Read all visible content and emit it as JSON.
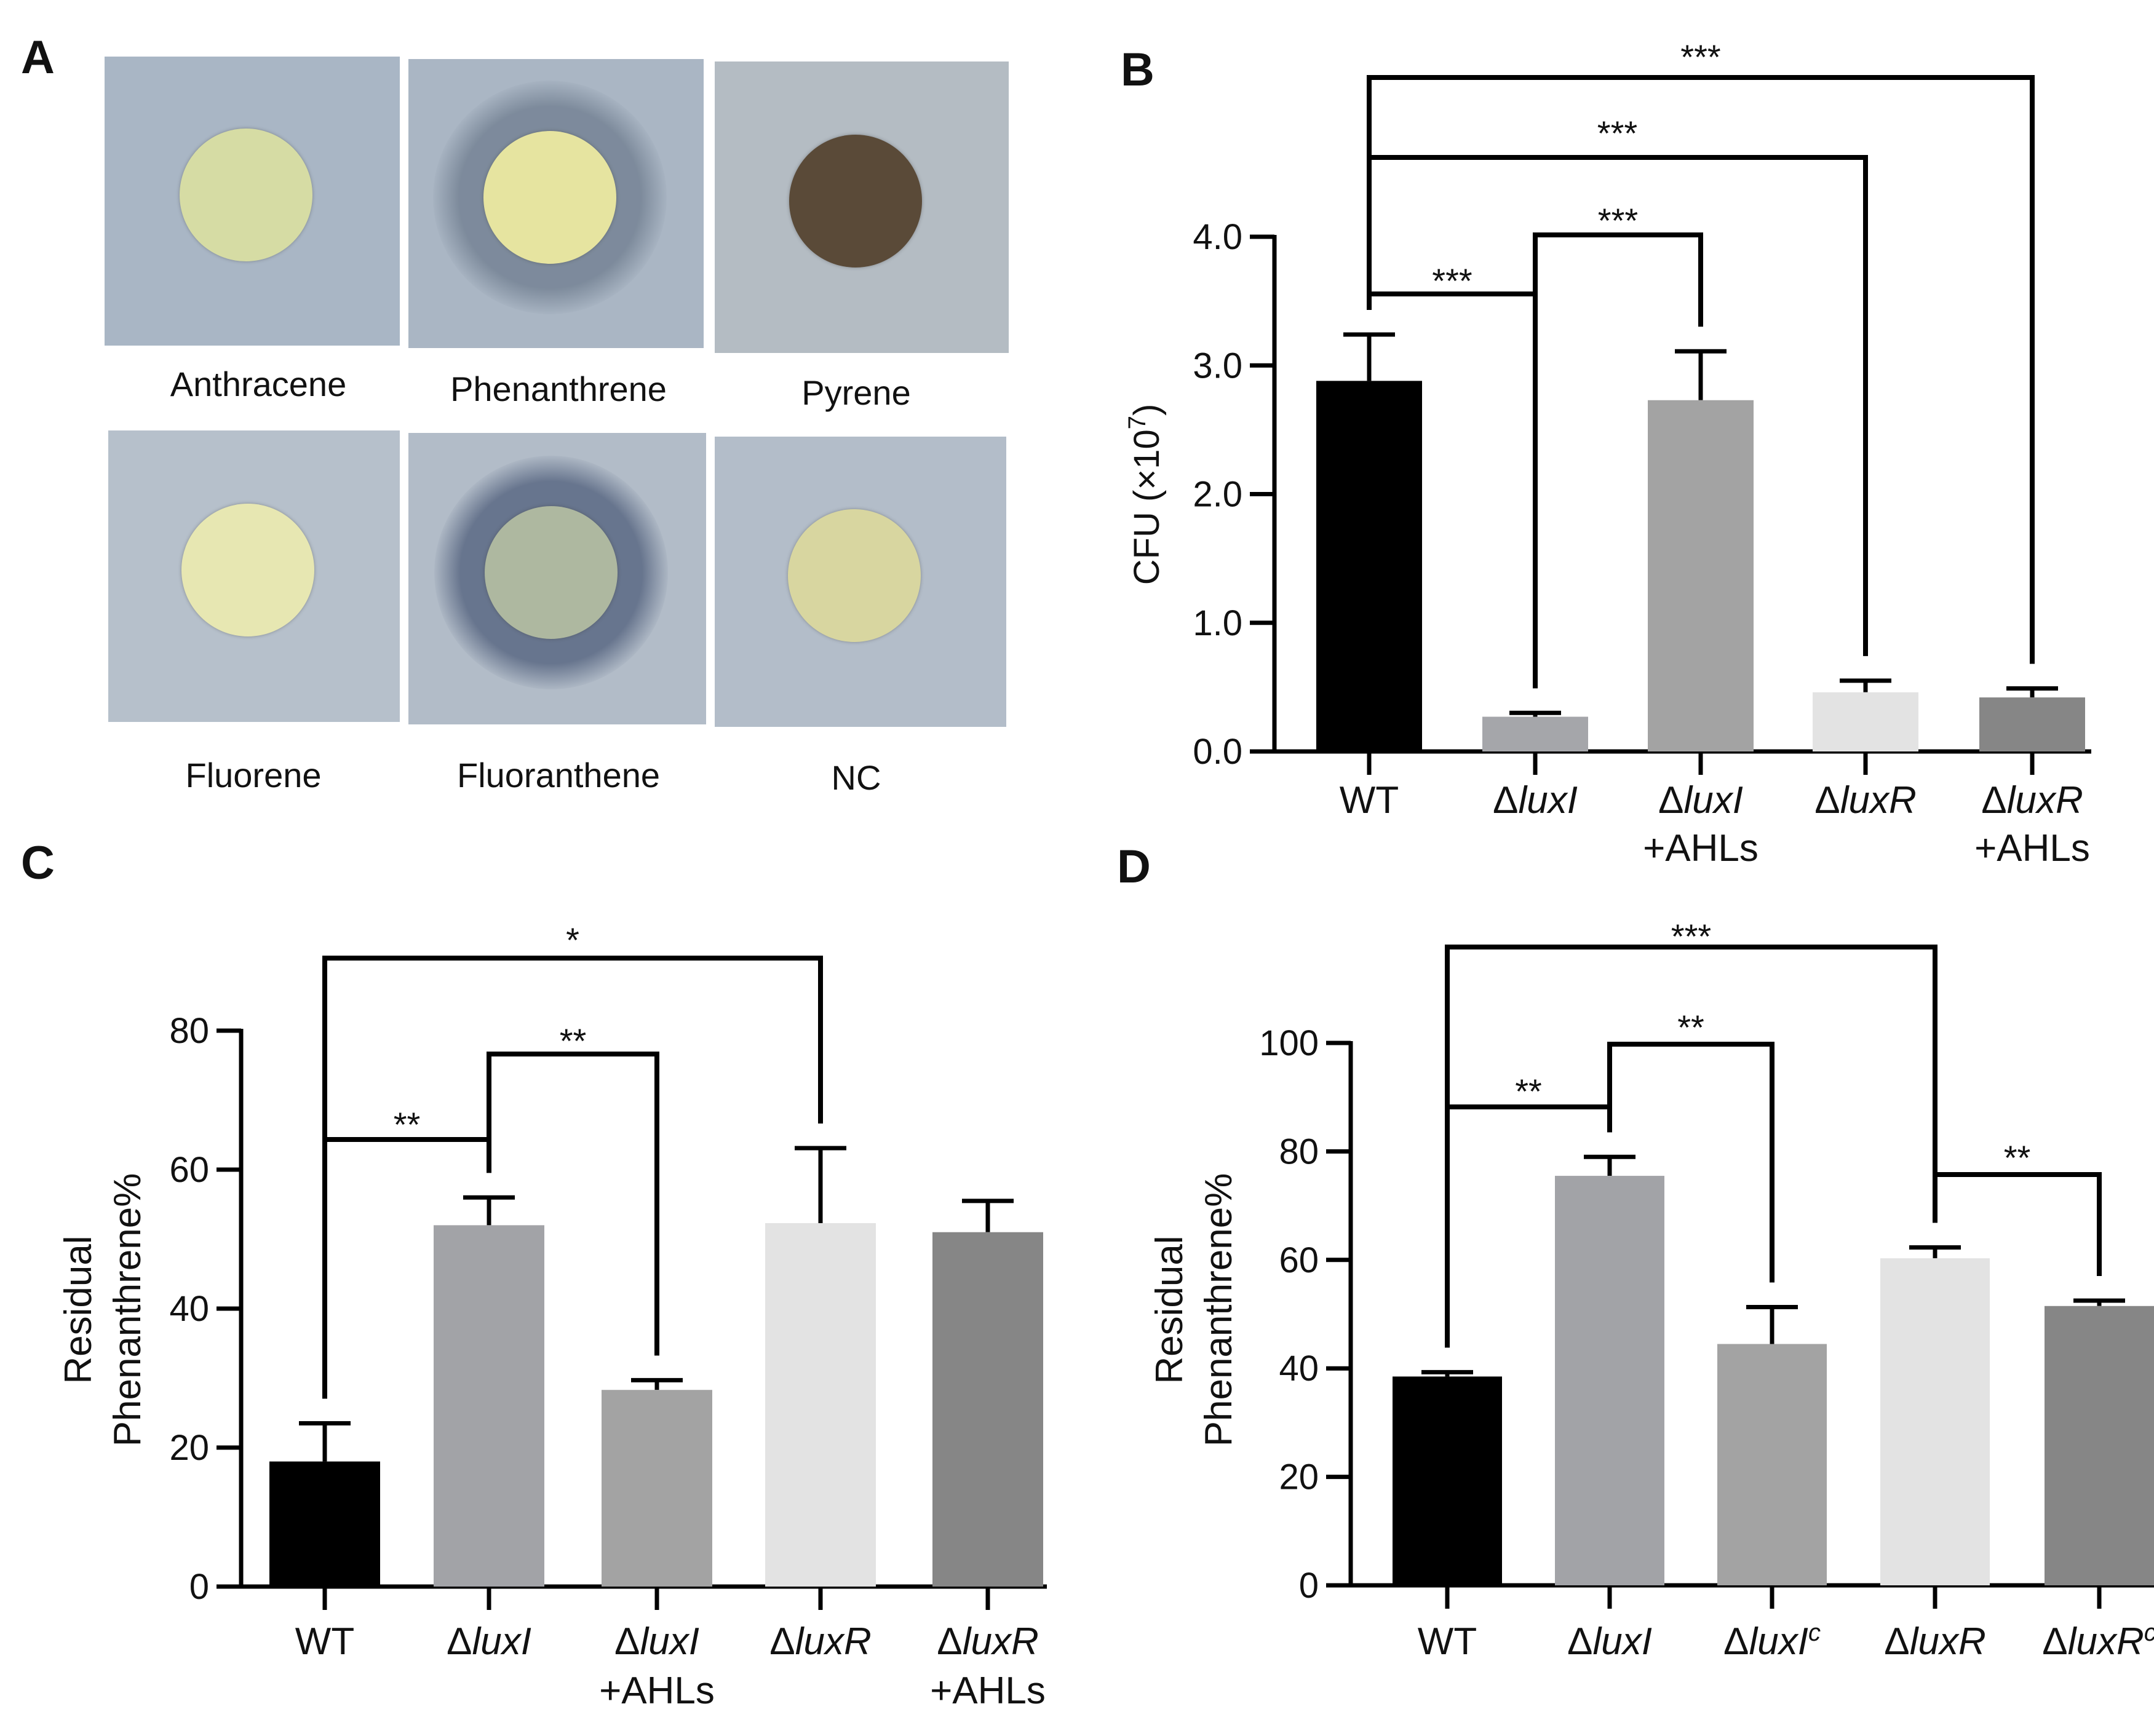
{
  "panels": {
    "a": "A",
    "b": "B",
    "c": "C",
    "d": "D"
  },
  "plates": [
    {
      "label": "Anthracene",
      "bg": "#a9b6c5",
      "colony": "#d6dca4",
      "halo": null
    },
    {
      "label": "Phenanthrene",
      "bg": "#aab6c4",
      "colony": "#e6e4a0",
      "halo": "#6e7c8e"
    },
    {
      "label": "Pyrene",
      "bg": "#b4bcc3",
      "colony": "#5a4a38",
      "halo": null
    },
    {
      "label": "Fluorene",
      "bg": "#b6c0cb",
      "colony": "#e7e7b2",
      "halo": null
    },
    {
      "label": "Fluoranthene",
      "bg": "#b2bcc8",
      "colony": "#aeb8a0",
      "halo": "#4e5d7a"
    },
    {
      "label": "NC",
      "bg": "#b3bdc9",
      "colony": "#d8d6a0",
      "halo": null
    }
  ],
  "chart_data": [
    {
      "panel": "B",
      "type": "bar",
      "ylabel_main": "CFU (×10",
      "ylabel_sup": "7",
      "ylabel_close": ")",
      "ylim": [
        0,
        4
      ],
      "yticks": [
        "0.0",
        "1.0",
        "2.0",
        "3.0",
        "4.0"
      ],
      "ytick_values": [
        0,
        1,
        2,
        3,
        4
      ],
      "categories": [
        {
          "prefix": "",
          "italic": "",
          "sup": "",
          "line2": "",
          "plain": "WT"
        },
        {
          "prefix": "Δ",
          "italic": "luxI",
          "sup": "",
          "line2": ""
        },
        {
          "prefix": "Δ",
          "italic": "luxI",
          "sup": "",
          "line2": "+AHLs"
        },
        {
          "prefix": "Δ",
          "italic": "luxR",
          "sup": "",
          "line2": ""
        },
        {
          "prefix": "Δ",
          "italic": "luxR",
          "sup": "",
          "line2": "+AHLs"
        }
      ],
      "values": [
        2.88,
        0.27,
        2.73,
        0.46,
        0.42
      ],
      "errors": [
        0.36,
        0.03,
        0.38,
        0.09,
        0.07
      ],
      "colors": [
        "#000000",
        "#a5a6aa",
        "#a3a3a3",
        "#e3e3e3",
        "#868686"
      ],
      "significance": [
        {
          "from": 0,
          "to": 1,
          "label": "***"
        },
        {
          "from": 1,
          "to": 2,
          "label": "***"
        },
        {
          "from": 0,
          "to": 3,
          "label": "***"
        },
        {
          "from": 0,
          "to": 4,
          "label": "***"
        }
      ]
    },
    {
      "panel": "C",
      "type": "bar",
      "ylabel_line1": "Residual",
      "ylabel_line2": "Phenanthrene%",
      "ylim": [
        0,
        80
      ],
      "yticks": [
        "0",
        "20",
        "40",
        "60",
        "80"
      ],
      "ytick_values": [
        0,
        20,
        40,
        60,
        80
      ],
      "categories": [
        {
          "prefix": "",
          "italic": "",
          "sup": "",
          "line2": "",
          "plain": "WT"
        },
        {
          "prefix": "Δ",
          "italic": "luxI",
          "sup": "",
          "line2": ""
        },
        {
          "prefix": "Δ",
          "italic": "luxI",
          "sup": "",
          "line2": "+AHLs"
        },
        {
          "prefix": "Δ",
          "italic": "luxR",
          "sup": "",
          "line2": ""
        },
        {
          "prefix": "Δ",
          "italic": "luxR",
          "sup": "",
          "line2": "+AHLs"
        }
      ],
      "values": [
        18,
        52,
        28.3,
        52.3,
        51
      ],
      "errors": [
        5.5,
        4,
        1.4,
        10.8,
        4.5
      ],
      "colors": [
        "#000000",
        "#a2a3a7",
        "#a3a3a3",
        "#e3e3e3",
        "#868686"
      ],
      "significance": [
        {
          "from": 0,
          "to": 1,
          "label": "**"
        },
        {
          "from": 1,
          "to": 2,
          "label": "**"
        },
        {
          "from": 0,
          "to": 3,
          "label": "*"
        }
      ]
    },
    {
      "panel": "D",
      "type": "bar",
      "ylabel_line1": "Residual",
      "ylabel_line2": "Phenanthrene%",
      "ylim": [
        0,
        100
      ],
      "yticks": [
        "0",
        "20",
        "40",
        "60",
        "80",
        "100"
      ],
      "ytick_values": [
        0,
        20,
        40,
        60,
        80,
        100
      ],
      "categories": [
        {
          "prefix": "",
          "italic": "",
          "sup": "",
          "line2": "",
          "plain": "WT"
        },
        {
          "prefix": "Δ",
          "italic": "luxI",
          "sup": "",
          "line2": ""
        },
        {
          "prefix": "Δ",
          "italic": "luxI",
          "sup": "c",
          "line2": ""
        },
        {
          "prefix": "Δ",
          "italic": "luxR",
          "sup": "",
          "line2": ""
        },
        {
          "prefix": "Δ",
          "italic": "luxR",
          "sup": "c",
          "line2": ""
        }
      ],
      "values": [
        38.5,
        75.5,
        44.5,
        60.3,
        51.5
      ],
      "errors": [
        0.8,
        3.5,
        6.8,
        2.0,
        1.0
      ],
      "colors": [
        "#000000",
        "#a2a3a7",
        "#a3a3a3",
        "#e3e3e3",
        "#868686"
      ],
      "significance": [
        {
          "from": 0,
          "to": 1,
          "label": "**"
        },
        {
          "from": 1,
          "to": 2,
          "label": "**"
        },
        {
          "from": 0,
          "to": 3,
          "label": "***"
        },
        {
          "from": 3,
          "to": 4,
          "label": "**"
        }
      ]
    }
  ]
}
